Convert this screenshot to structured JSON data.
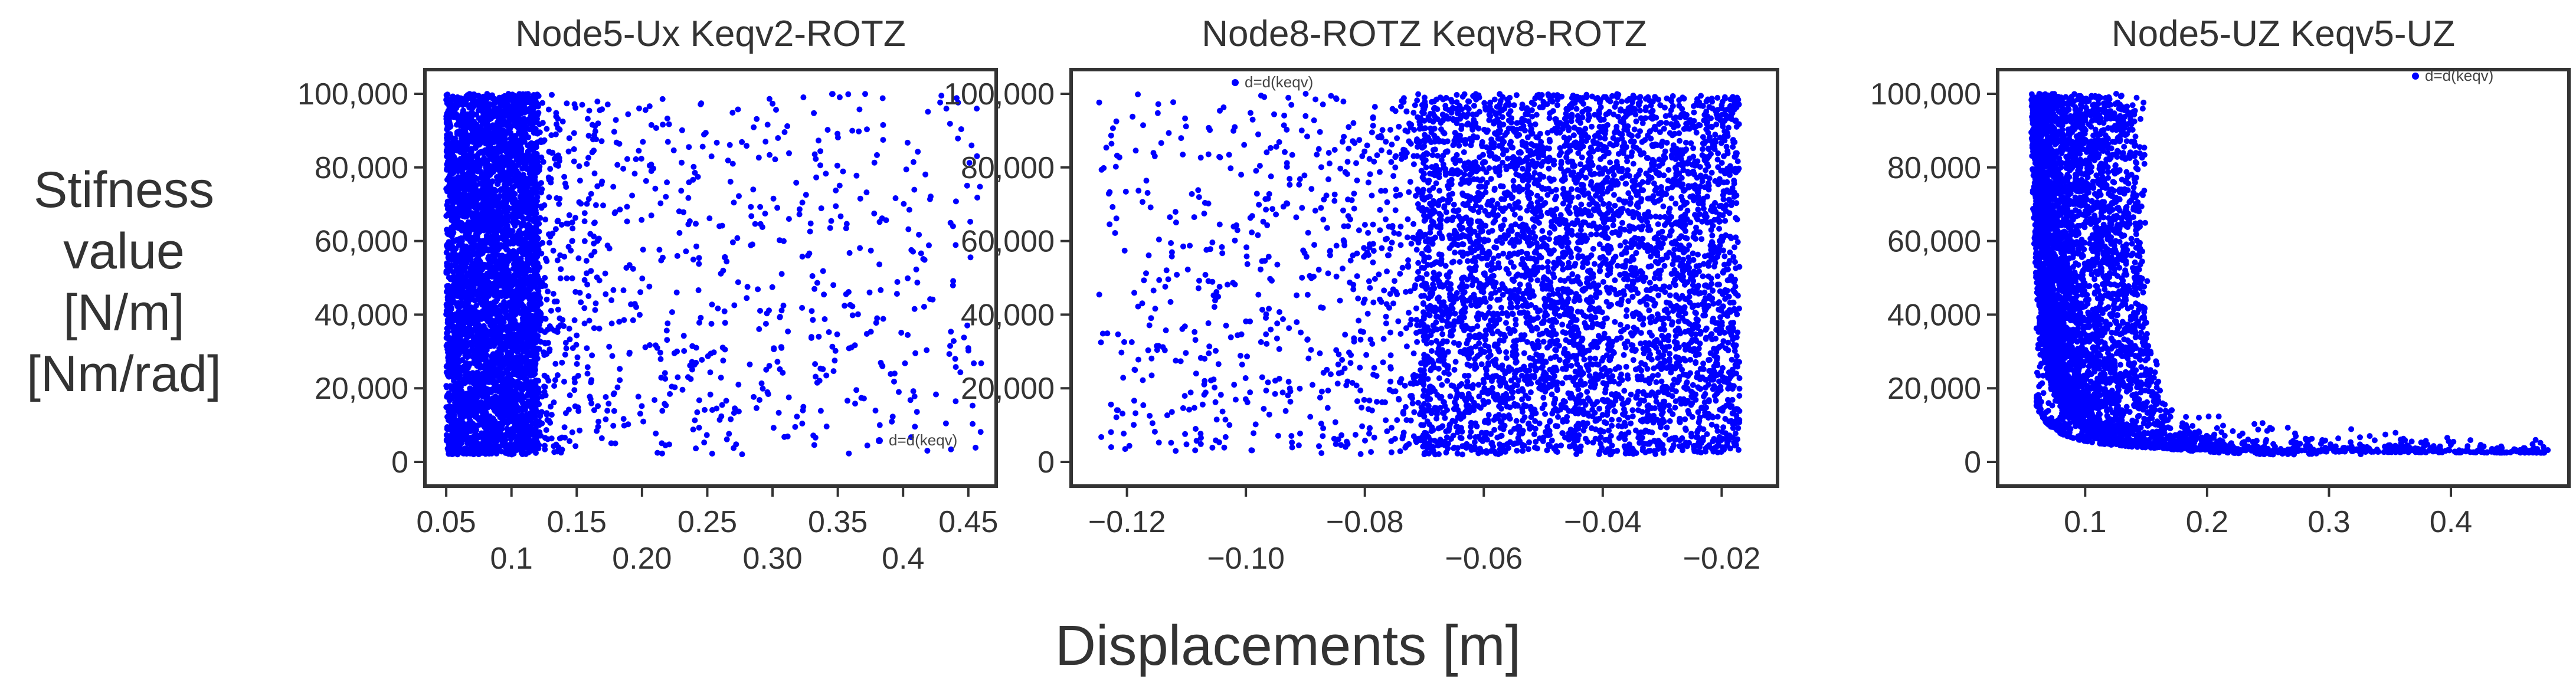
{
  "figure": {
    "ylabel_lines": [
      "Stifness",
      "value",
      "[N/m]",
      "[Nm/rad]"
    ],
    "xlabel": "Displacements [m]"
  },
  "chart_data": [
    {
      "type": "scatter",
      "title": "Node5-Ux Keqv2-ROTZ",
      "series_color": "#0000ff",
      "legend": {
        "label": "d=d(keqv)",
        "position": "lower-right"
      },
      "xlim": [
        0.04,
        0.465
      ],
      "ylim": [
        -4000,
        104000
      ],
      "yticks": [
        0,
        20000,
        40000,
        60000,
        80000,
        100000
      ],
      "ytick_labels": [
        "0",
        "20,000",
        "40,000",
        "60,000",
        "80,000",
        "100,000"
      ],
      "xticks_upper": [
        0.05,
        0.15,
        0.25,
        0.35,
        0.45
      ],
      "xticks_upper_labels": [
        "0.05",
        "0.15",
        "0.25",
        "0.35",
        "0.45"
      ],
      "xticks_lower": [
        0.1,
        0.2,
        0.3,
        0.4
      ],
      "xticks_lower_labels": [
        "0.1",
        "0.20",
        "0.30",
        "0.4"
      ],
      "distribution": {
        "dense_min": 0.05,
        "dense_max": 0.12,
        "tail_to": 0.46,
        "y_min": 2000,
        "y_max": 100000
      }
    },
    {
      "type": "scatter",
      "title": "Node8-ROTZ Keqv8-ROTZ",
      "series_color": "#0000ff",
      "legend": {
        "label": "d=d(keqv)",
        "position": "top-left"
      },
      "xlim": [
        -0.128,
        -0.012
      ],
      "ylim": [
        -4000,
        104000
      ],
      "yticks": [
        0,
        20000,
        40000,
        60000,
        80000,
        100000
      ],
      "ytick_labels": [
        "0",
        "20,000",
        "40,000",
        "60,000",
        "80,000",
        "100,000"
      ],
      "xticks_upper": [
        -0.12,
        -0.08,
        -0.04
      ],
      "xticks_upper_labels": [
        "−0.12",
        "−0.08",
        "−0.04"
      ],
      "xticks_lower": [
        -0.1,
        -0.06,
        -0.02
      ],
      "xticks_lower_labels": [
        "−0.10",
        "−0.06",
        "−0.02"
      ],
      "distribution": {
        "dense_min": -0.07,
        "dense_max": -0.017,
        "tail_to": -0.125,
        "y_min": 2000,
        "y_max": 100000
      }
    },
    {
      "type": "scatter",
      "title": "Node5-UZ   Keqv5-UZ",
      "series_color": "#0000ff",
      "legend": {
        "label": "d=d(keqv)",
        "position": "top-right"
      },
      "xlim": [
        0.035,
        0.49
      ],
      "ylim": [
        -4000,
        104000
      ],
      "yticks": [
        0,
        20000,
        40000,
        60000,
        80000,
        100000
      ],
      "ytick_labels": [
        "0",
        "20,000",
        "40,000",
        "60,000",
        "80,000",
        "100,000"
      ],
      "xticks_upper": [
        0.1,
        0.2,
        0.3,
        0.4
      ],
      "xticks_upper_labels": [
        "0.1",
        "0.2",
        "0.3",
        "0.4"
      ],
      "xticks_lower": [],
      "xticks_lower_labels": [],
      "distribution": {
        "shape": "hyperbolic",
        "x_min": 0.05,
        "x_max": 0.48,
        "y_min": 2000,
        "y_max": 100000
      }
    }
  ]
}
